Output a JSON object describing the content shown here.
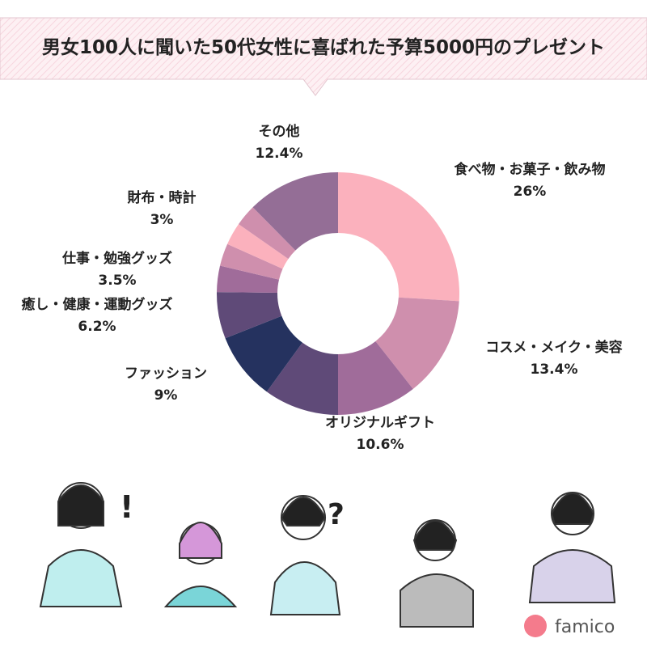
{
  "chart_data": {
    "type": "donut",
    "title": "男女100人に聞いた50代女性に喜ばれた予算5000円のプレゼント",
    "categories": [
      "食べ物・お菓子・飲み物",
      "コスメ・メイク・美容",
      "オリジナルギフト",
      null,
      "ファッション",
      "癒し・健康・運動グッズ",
      "仕事・勉強グッズ",
      null,
      "財布・時計",
      null,
      "その他"
    ],
    "values": [
      26,
      13.4,
      10.6,
      10,
      9,
      6.2,
      3.5,
      3,
      3,
      2.9,
      12.4
    ],
    "value_labels": [
      "26%",
      "13.4%",
      "10.6%",
      null,
      "9%",
      "6.2%",
      "3.5%",
      null,
      "3%",
      null,
      "12.4%"
    ],
    "colors": [
      "#fbb1bd",
      "#cf8fad",
      "#a06c9a",
      "#5f4a78",
      "#25325f",
      "#5f4a78",
      "#a06c9a",
      "#cf8fad",
      "#fbb1bd",
      "#cf8fad",
      "#946e96"
    ]
  },
  "decorations": {
    "marks": [
      "!",
      "?"
    ],
    "logo": "famico"
  }
}
